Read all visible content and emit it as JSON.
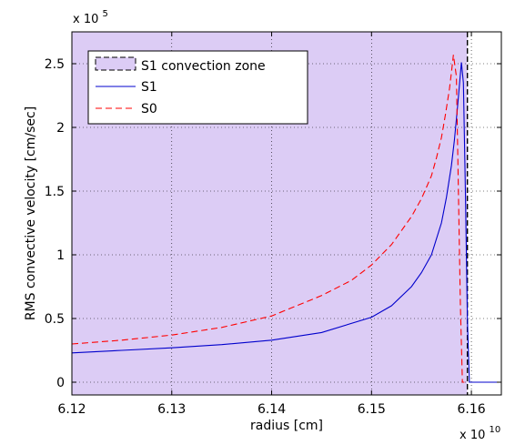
{
  "chart_data": {
    "type": "line",
    "title": "",
    "xlabel": "radius [cm]",
    "ylabel": "RMS convective velocity [cm/sec]",
    "xlim": [
      6.12,
      6.163
    ],
    "ylim": [
      -0.1,
      2.75
    ],
    "x_multiplier": {
      "base": "x 10",
      "exponent": "10"
    },
    "y_multiplier": {
      "base": "x 10",
      "exponent": "5"
    },
    "x_ticks": [
      6.12,
      6.13,
      6.14,
      6.15,
      6.16
    ],
    "x_tick_labels": [
      "6.12",
      "6.13",
      "6.14",
      "6.15",
      "6.16"
    ],
    "y_ticks": [
      0,
      0.5,
      1,
      1.5,
      2,
      2.5
    ],
    "y_tick_labels": [
      "0",
      "0.5",
      "1",
      "1.5",
      "2",
      "2.5"
    ],
    "grid": true,
    "legend_position": "top-left",
    "convection_zone": {
      "name": "S1 convection zone",
      "x_start": 6.12,
      "x_end": 6.1596,
      "y_top": 2.75,
      "fill_color": "#dcccf5",
      "edge_color": "#000000"
    },
    "series": [
      {
        "name": "S1",
        "color": "#0000cc",
        "dash": "solid",
        "x": [
          6.12,
          6.125,
          6.13,
          6.135,
          6.14,
          6.145,
          6.15,
          6.152,
          6.154,
          6.155,
          6.156,
          6.157,
          6.1575,
          6.158,
          6.1583,
          6.1586,
          6.1588,
          6.159,
          6.1592,
          6.1594,
          6.1596,
          6.1598,
          6.162,
          6.163
        ],
        "y": [
          0.23,
          0.25,
          0.27,
          0.295,
          0.33,
          0.39,
          0.51,
          0.6,
          0.75,
          0.86,
          1.0,
          1.25,
          1.45,
          1.7,
          1.9,
          2.15,
          2.33,
          2.51,
          2.35,
          1.5,
          0.5,
          0.0,
          0.0,
          0.0
        ]
      },
      {
        "name": "S0",
        "color": "#ff0000",
        "dash": "dashed",
        "x": [
          6.12,
          6.125,
          6.13,
          6.135,
          6.14,
          6.145,
          6.148,
          6.15,
          6.152,
          6.154,
          6.155,
          6.156,
          6.1565,
          6.157,
          6.1574,
          6.1578,
          6.158,
          6.1582,
          6.1585,
          6.1587,
          6.1589,
          6.1591,
          6.1593
        ],
        "y": [
          0.3,
          0.33,
          0.37,
          0.43,
          0.52,
          0.68,
          0.8,
          0.92,
          1.08,
          1.3,
          1.44,
          1.62,
          1.76,
          1.92,
          2.1,
          2.3,
          2.43,
          2.57,
          2.4,
          1.5,
          0.6,
          0.0,
          0.0
        ]
      }
    ]
  }
}
